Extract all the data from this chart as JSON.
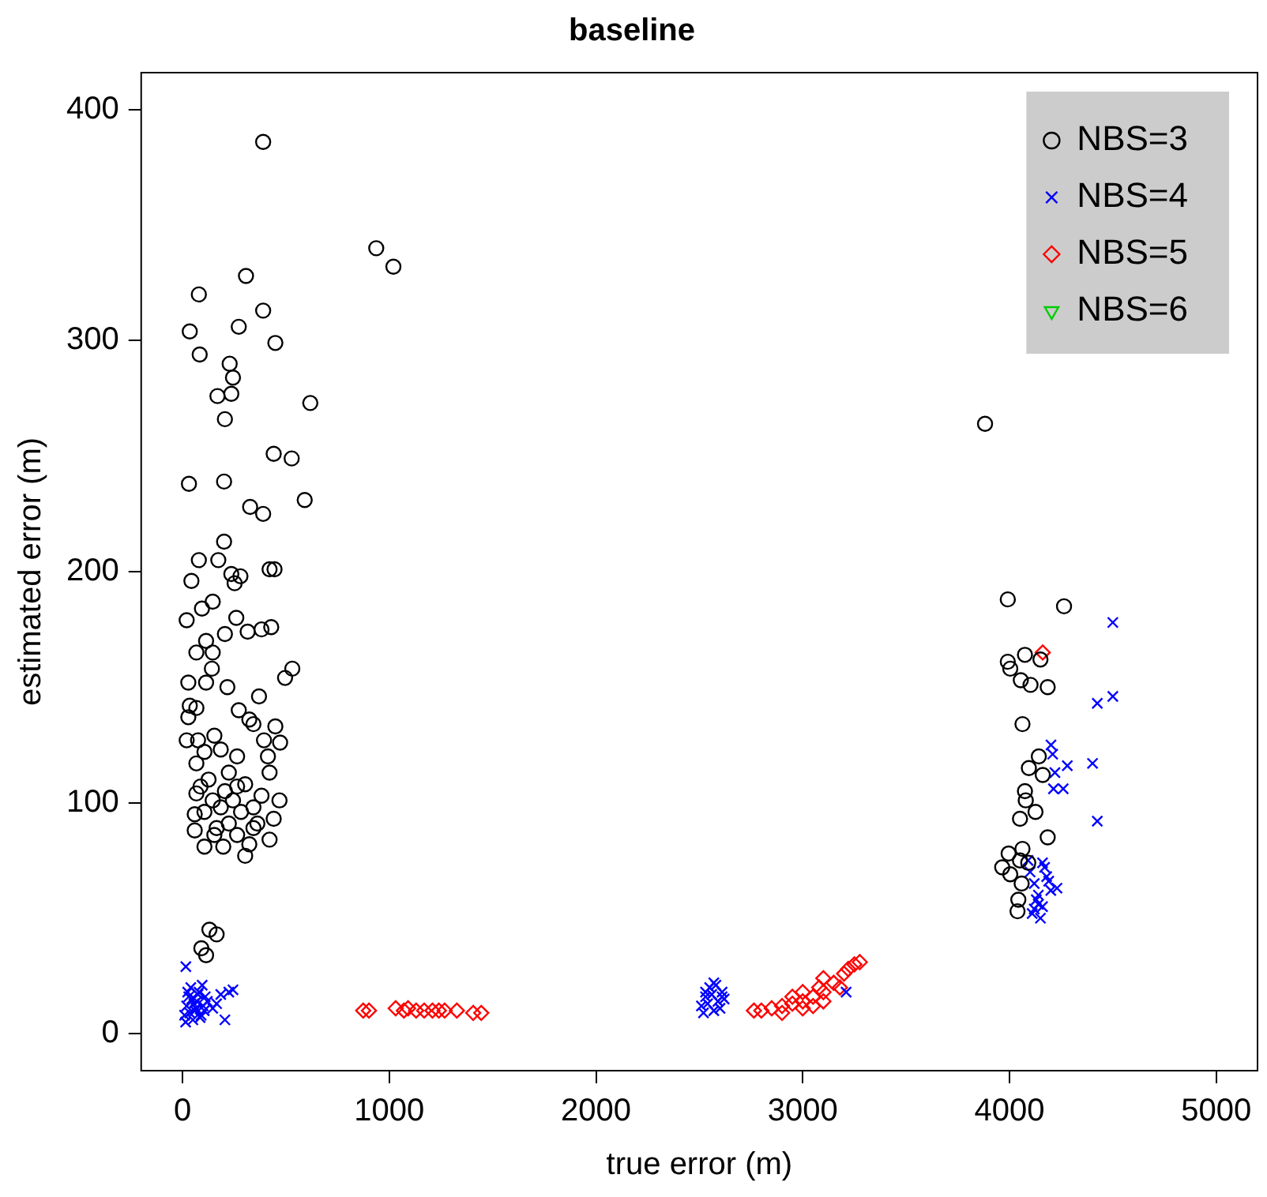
{
  "chart_data": {
    "type": "scatter",
    "title": "baseline",
    "xlabel": "true error (m)",
    "ylabel": "estimated error (m)",
    "xlim": [
      -200,
      5200
    ],
    "ylim": [
      -16,
      416
    ],
    "xticks": [
      0,
      1000,
      2000,
      3000,
      4000,
      5000
    ],
    "yticks": [
      0,
      100,
      200,
      300,
      400
    ],
    "grid": false,
    "legend": "top right",
    "series": [
      {
        "name": "NBS=3",
        "color": "#000000",
        "marker": "circle",
        "x": [
          390,
          937,
          1020,
          79,
          307,
          35,
          83,
          390,
          272,
          449,
          228,
          244,
          169,
          236,
          205,
          618,
          441,
          528,
          31,
          201,
          327,
          390,
          591,
          201,
          79,
          173,
          43,
          236,
          280,
          421,
          445,
          252,
          20,
          94,
          146,
          260,
          205,
          315,
          382,
          429,
          67,
          146,
          114,
          142,
          496,
          531,
          28,
          114,
          217,
          35,
          67,
          272,
          370,
          323,
          343,
          449,
          28,
          20,
          75,
          154,
          472,
          394,
          106,
          185,
          264,
          413,
          67,
          224,
          421,
          87,
          264,
          469,
          59,
          106,
          185,
          343,
          441,
          59,
          154,
          264,
          421,
          197,
          303,
          67,
          146,
          224,
          303,
          382,
          244,
          343,
          126,
          205,
          283,
          362,
          165,
          323,
          106,
          130,
          165,
          91,
          114,
          3882,
          3992,
          4264,
          3992,
          4004,
          4075,
          4150,
          4055,
          4102,
          4185,
          4063,
          4142,
          4094,
          4161,
          4075,
          4079,
          4126,
          4051,
          4185,
          3996,
          4063,
          3965,
          4004,
          4051,
          4091,
          4043,
          4039,
          4059
        ],
        "values": [
          386,
          340,
          332,
          320,
          328,
          304,
          294,
          313,
          306,
          299,
          290,
          284,
          276,
          277,
          266,
          273,
          251,
          249,
          238,
          239,
          228,
          225,
          231,
          213,
          205,
          205,
          196,
          199,
          198,
          201,
          201,
          195,
          179,
          184,
          187,
          180,
          173,
          174,
          175,
          176,
          165,
          165,
          170,
          158,
          154,
          158,
          152,
          152,
          150,
          142,
          141,
          140,
          146,
          136,
          134,
          133,
          137,
          127,
          127,
          129,
          126,
          127,
          122,
          123,
          120,
          120,
          117,
          113,
          113,
          107,
          107,
          101,
          95,
          96,
          98,
          98,
          93,
          88,
          86,
          86,
          84,
          81,
          77,
          104,
          101,
          91,
          108,
          103,
          101,
          89,
          110,
          105,
          96,
          91,
          89,
          82,
          81,
          45,
          43,
          37,
          34,
          264,
          188,
          185,
          161,
          158,
          164,
          162,
          153,
          151,
          150,
          134,
          120,
          115,
          112,
          105,
          101,
          96,
          93,
          85,
          78,
          80,
          72,
          69,
          75,
          74,
          58,
          53,
          65
        ]
      },
      {
        "name": "NBS=4",
        "color": "#0000ff",
        "marker": "cross",
        "x": [
          16,
          224,
          185,
          244,
          205,
          146,
          165,
          10,
          20,
          30,
          40,
          50,
          60,
          70,
          80,
          90,
          100,
          110,
          15,
          35,
          55,
          75,
          95,
          25,
          45,
          65,
          85,
          105,
          120,
          2510,
          2530,
          2550,
          2570,
          2590,
          2610,
          2520,
          2540,
          2560,
          2580,
          2600,
          2620,
          2530,
          2570,
          2610,
          3210,
          4500,
          4500,
          4425,
          4402,
          4425,
          4201,
          4209,
          4220,
          4280,
          4260,
          4213,
          4100,
          4120,
          4140,
          4160,
          4180,
          4200,
          4110,
          4130,
          4150,
          4170,
          4190,
          4230,
          4090,
          4140,
          4160,
          4120
        ],
        "values": [
          29,
          18,
          17,
          19,
          6,
          11,
          13,
          8,
          12,
          16,
          20,
          6,
          10,
          14,
          18,
          8,
          12,
          16,
          5,
          9,
          13,
          17,
          21,
          18,
          15,
          11,
          7,
          10,
          14,
          12,
          16,
          20,
          10,
          14,
          18,
          9,
          13,
          17,
          21,
          11,
          15,
          18,
          22,
          16,
          18,
          178,
          146,
          143,
          117,
          92,
          125,
          121,
          113,
          116,
          106,
          106,
          70,
          65,
          60,
          55,
          68,
          62,
          52,
          58,
          50,
          72,
          66,
          63,
          75,
          56,
          74,
          54
        ]
      },
      {
        "name": "NBS=5",
        "color": "#ff0000",
        "marker": "diamond",
        "x": [
          874,
          902,
          1031,
          1071,
          1091,
          1130,
          1169,
          1209,
          1240,
          1268,
          1327,
          1406,
          1445,
          2764,
          2800,
          2850,
          2900,
          2900,
          2950,
          2950,
          3000,
          3000,
          3000,
          3050,
          3050,
          3080,
          3100,
          3100,
          3100,
          3150,
          3180,
          3200,
          3220,
          3250,
          3276,
          4161
        ],
        "values": [
          10,
          10,
          11,
          10,
          11,
          10,
          10,
          10,
          10,
          10,
          10,
          9,
          9,
          10,
          10,
          11,
          12,
          9,
          13,
          16,
          14,
          11,
          18,
          16,
          12,
          20,
          18,
          14,
          24,
          22,
          20,
          26,
          28,
          30,
          31,
          165
        ]
      },
      {
        "name": "NBS=6",
        "color": "#00cc00",
        "marker": "triangle"
      }
    ]
  }
}
